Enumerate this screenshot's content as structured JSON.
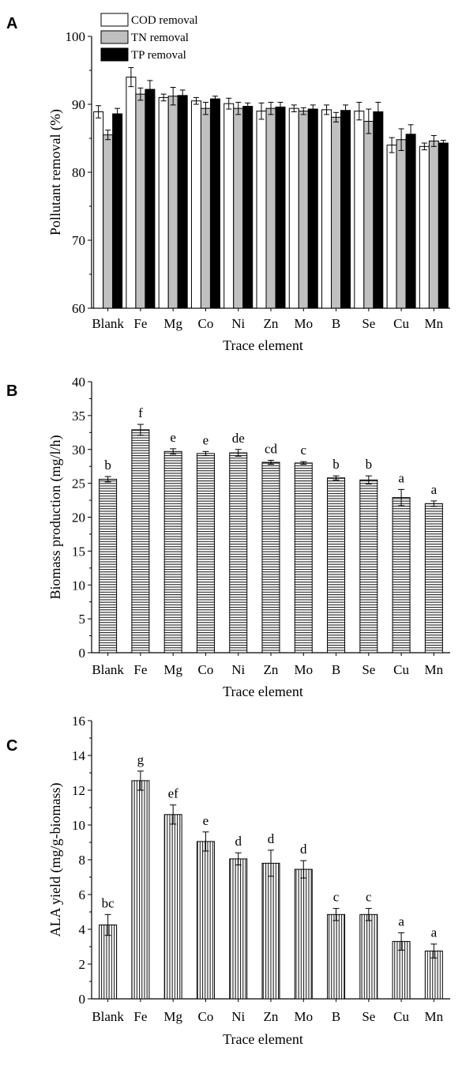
{
  "chart_data": [
    {
      "panel": "A",
      "type": "bar",
      "xlabel": "Trace element",
      "ylabel": "Pollutant removal (%)",
      "ylim": [
        60,
        100
      ],
      "yticks": [
        60,
        70,
        80,
        90,
        100
      ],
      "categories": [
        "Blank",
        "Fe",
        "Mg",
        "Co",
        "Ni",
        "Zn",
        "Mo",
        "B",
        "Se",
        "Cu",
        "Mn"
      ],
      "legend_position": "top-left",
      "series": [
        {
          "name": "COD removal",
          "color": "#ffffff",
          "values": [
            88.9,
            94.0,
            91.0,
            90.5,
            90.1,
            89.0,
            89.4,
            89.2,
            89.0,
            84.0,
            83.8
          ],
          "errors": [
            0.9,
            1.4,
            0.5,
            0.5,
            0.8,
            1.2,
            0.5,
            0.7,
            1.3,
            1.1,
            0.5
          ]
        },
        {
          "name": "TN removal",
          "color": "#c0c0c0",
          "values": [
            85.5,
            91.5,
            91.2,
            89.4,
            89.4,
            89.4,
            89.0,
            88.1,
            87.5,
            84.8,
            84.6
          ],
          "errors": [
            0.7,
            0.9,
            1.3,
            0.9,
            0.9,
            0.9,
            0.5,
            0.7,
            1.8,
            1.6,
            0.8
          ]
        },
        {
          "name": "TP removal",
          "color": "#000000",
          "values": [
            88.6,
            92.2,
            91.3,
            90.8,
            89.7,
            89.6,
            89.3,
            89.1,
            88.9,
            85.6,
            84.3
          ],
          "errors": [
            0.8,
            1.3,
            0.8,
            0.4,
            0.5,
            0.7,
            0.6,
            0.8,
            1.4,
            1.4,
            0.4
          ]
        }
      ]
    },
    {
      "panel": "B",
      "type": "bar",
      "xlabel": "Trace element",
      "ylabel": "Biomass production (mg/l/h)",
      "ylim": [
        0,
        40
      ],
      "yticks": [
        0,
        5,
        10,
        15,
        20,
        25,
        30,
        35,
        40
      ],
      "categories": [
        "Blank",
        "Fe",
        "Mg",
        "Co",
        "Ni",
        "Zn",
        "Mo",
        "B",
        "Se",
        "Cu",
        "Mn"
      ],
      "values": [
        25.6,
        32.9,
        29.7,
        29.4,
        29.5,
        28.1,
        28.0,
        25.8,
        25.5,
        22.9,
        22.0
      ],
      "errors": [
        0.4,
        0.8,
        0.4,
        0.3,
        0.5,
        0.3,
        0.2,
        0.3,
        0.6,
        1.2,
        0.4
      ],
      "annotations": [
        "b",
        "f",
        "e",
        "e",
        "de",
        "cd",
        "c",
        "b",
        "b",
        "a",
        "a"
      ]
    },
    {
      "panel": "C",
      "type": "bar",
      "xlabel": "Trace element",
      "ylabel": "ALA yield (mg/g-biomass)",
      "ylim": [
        0,
        16
      ],
      "yticks": [
        0,
        2,
        4,
        6,
        8,
        10,
        12,
        14,
        16
      ],
      "categories": [
        "Blank",
        "Fe",
        "Mg",
        "Co",
        "Ni",
        "Zn",
        "Mo",
        "B",
        "Se",
        "Cu",
        "Mn"
      ],
      "values": [
        4.25,
        12.55,
        10.6,
        9.05,
        8.05,
        7.8,
        7.45,
        4.85,
        4.85,
        3.3,
        2.75
      ],
      "errors": [
        0.6,
        0.55,
        0.55,
        0.55,
        0.35,
        0.75,
        0.5,
        0.35,
        0.35,
        0.5,
        0.4
      ],
      "annotations": [
        "bc",
        "g",
        "ef",
        "e",
        "d",
        "d",
        "d",
        "c",
        "c",
        "a",
        "a"
      ]
    }
  ]
}
